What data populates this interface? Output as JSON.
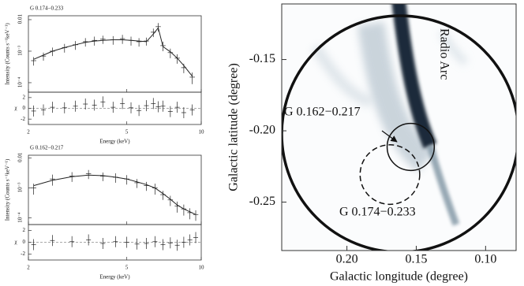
{
  "chart_data": [
    {
      "type": "spectrum",
      "title": "G 0.174−0.233",
      "xlabel": "Energy (keV)",
      "ylabel": "Intensity (Counts s⁻¹keV⁻¹)",
      "residual_label": "χ",
      "xscale": "log",
      "yscale": "log",
      "xlim": [
        2,
        10
      ],
      "xticks": [
        2,
        5,
        10
      ],
      "ylim": [
        5e-05,
        0.0133
      ],
      "yticks": [
        0.01,
        {
          "value": 0.001,
          "label": "10⁻³"
        },
        {
          "value": 0.0001,
          "label": "10⁻⁴"
        }
      ],
      "residual_ylim": [
        -3,
        3
      ],
      "residual_yticks": [
        2,
        0,
        -2
      ],
      "x": [
        2.1,
        2.3,
        2.5,
        2.8,
        3.1,
        3.4,
        3.7,
        4.0,
        4.4,
        4.8,
        5.2,
        5.6,
        6.0,
        6.4,
        6.7,
        7.0,
        7.5,
        8.0,
        8.5,
        9.2
      ],
      "values": [
        0.0005,
        0.0007,
        0.001,
        0.0013,
        0.0016,
        0.002,
        0.0022,
        0.0024,
        0.0023,
        0.0025,
        0.0022,
        0.002,
        0.0021,
        0.004,
        0.006,
        0.0015,
        0.0009,
        0.0006,
        0.0003,
        0.00015
      ],
      "errors": [
        0.00015,
        0.0002,
        0.0003,
        0.0004,
        0.0005,
        0.0006,
        0.0007,
        0.0007,
        0.0007,
        0.0008,
        0.0007,
        0.0006,
        0.0006,
        0.0012,
        0.0018,
        0.0005,
        0.0003,
        0.0002,
        0.0001,
        6e-05
      ],
      "model": [
        0.00055,
        0.00075,
        0.001,
        0.0013,
        0.0016,
        0.0019,
        0.0021,
        0.0022,
        0.0023,
        0.0023,
        0.0022,
        0.0021,
        0.002,
        0.0035,
        0.0055,
        0.0014,
        0.00095,
        0.0006,
        0.00035,
        0.00016
      ],
      "residual": [
        -0.5,
        -0.3,
        0.2,
        0.1,
        0.4,
        0.8,
        0.6,
        1.2,
        0.2,
        0.9,
        0.1,
        -0.4,
        0.5,
        0.9,
        0.3,
        0.4,
        -0.6,
        0.2,
        -0.8,
        -0.3
      ],
      "color": "#222222"
    },
    {
      "type": "spectrum",
      "title": "G 0.162−0.217",
      "xlabel": "Energy (keV)",
      "ylabel": "Intensity (Counts s⁻¹keV⁻¹)",
      "residual_label": "χ",
      "xscale": "log",
      "yscale": "log",
      "xlim": [
        2,
        10
      ],
      "xticks": [
        2,
        5,
        10
      ],
      "ylim": [
        6e-05,
        0.0125
      ],
      "yticks": [
        0.01,
        {
          "value": 0.001,
          "label": "10⁻³"
        },
        {
          "value": 0.0001,
          "label": "10⁻⁴"
        }
      ],
      "residual_ylim": [
        -3,
        3
      ],
      "residual_yticks": [
        2,
        0,
        -2
      ],
      "x": [
        2.1,
        2.5,
        3.0,
        3.5,
        4.0,
        4.5,
        5.0,
        5.5,
        6.0,
        6.5,
        7.0,
        7.5,
        8.0,
        8.5,
        9.0,
        9.5
      ],
      "values": [
        0.001,
        0.002,
        0.0025,
        0.003,
        0.0025,
        0.0023,
        0.002,
        0.0015,
        0.0012,
        0.001,
        0.0006,
        0.0004,
        0.00025,
        0.0002,
        0.00015,
        0.00013
      ],
      "errors": [
        0.0004,
        0.0008,
        0.0009,
        0.001,
        0.0008,
        0.0008,
        0.0007,
        0.0005,
        0.0004,
        0.0004,
        0.0002,
        0.00015,
        0.0001,
        8e-05,
        6e-05,
        5e-05
      ],
      "model": [
        0.0012,
        0.0018,
        0.0024,
        0.0027,
        0.0026,
        0.0023,
        0.002,
        0.0016,
        0.0013,
        0.001,
        0.00065,
        0.00042,
        0.00027,
        0.0002,
        0.00016,
        0.00013
      ],
      "residual": [
        -0.4,
        0.3,
        0.1,
        0.4,
        -0.2,
        0.1,
        0.0,
        -0.3,
        -0.2,
        0.1,
        -0.4,
        -0.1,
        -0.5,
        0.0,
        0.4,
        0.8
      ],
      "color": "#222222"
    },
    {
      "type": "image",
      "xlabel": "Galactic longitude (degree)",
      "ylabel": "Galactic latitude (degree)",
      "xlim": [
        0.247,
        0.078
      ],
      "xticks": [
        {
          "value": 0.2,
          "label": "0.20"
        },
        0.15,
        {
          "value": 0.1,
          "label": "0.10"
        }
      ],
      "ylim": [
        -0.284,
        -0.111
      ],
      "yticks": [
        -0.15,
        {
          "value": -0.2,
          "label": "-0.20"
        },
        -0.25
      ],
      "annotations": [
        "Radio Arc",
        "G 0.162−0.217",
        "G 0.174−0.233"
      ],
      "regions": [
        {
          "x": 0.154,
          "y": -0.2113,
          "r": 0.017,
          "style": "solid"
        },
        {
          "x": 0.169,
          "y": -0.2307,
          "r": 0.0215,
          "style": "dashed"
        }
      ]
    }
  ]
}
